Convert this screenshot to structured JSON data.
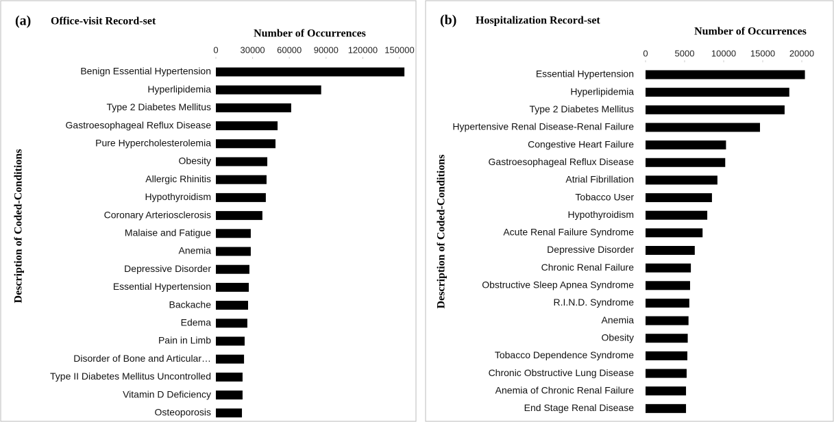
{
  "chart_data": [
    {
      "type": "bar",
      "orientation": "horizontal",
      "panel_label": "(a)",
      "title": "Office-visit Record-set",
      "x_label": "Number of Occurrences",
      "y_label": "Description of Coded-Conditions",
      "color": "#000000",
      "categories": [
        "Benign Essential Hypertension",
        "Hyperlipidemia",
        "Type 2 Diabetes Mellitus",
        "Gastroesophageal Reflux Disease",
        "Pure Hypercholesterolemia",
        "Obesity",
        "Allergic Rhinitis",
        "Hypothyroidism",
        "Coronary Arteriosclerosis",
        "Malaise and Fatigue",
        "Anemia",
        "Depressive Disorder",
        "Essential Hypertension",
        "Backache",
        "Edema",
        "Pain in Limb",
        "Disorder of Bone and Articular…",
        "Type II Diabetes Mellitus Uncontrolled",
        "Vitamin D Deficiency",
        "Osteoporosis"
      ],
      "values": [
        154000,
        86000,
        61500,
        50400,
        48700,
        42000,
        41400,
        40800,
        38000,
        28500,
        28500,
        27400,
        26900,
        26300,
        25700,
        23500,
        23000,
        21800,
        21800,
        21300
      ],
      "xlim": [
        0,
        150000
      ],
      "xticks": [
        0,
        30000,
        60000,
        90000,
        120000,
        150000
      ]
    },
    {
      "type": "bar",
      "orientation": "horizontal",
      "panel_label": "(b)",
      "title": "Hospitalization Record-set",
      "x_label": "Number of Occurrences",
      "y_label": "Description of Coded-Conditions",
      "color": "#000000",
      "categories": [
        "Essential Hypertension",
        "Hyperlipidemia",
        "Type 2 Diabetes Mellitus",
        "Hypertensive Renal Disease-Renal Failure",
        "Congestive Heart Failure",
        "Gastroesophageal Reflux Disease",
        "Atrial Fibrillation",
        "Tobacco User",
        "Hypothyroidism",
        "Acute Renal Failure Syndrome",
        "Depressive Disorder",
        "Chronic Renal Failure",
        "Obstructive Sleep Apnea Syndrome",
        "R.I.N.D. Syndrome",
        "Anemia",
        "Obesity",
        "Tobacco Dependence Syndrome",
        "Chronic Obstructive Lung Disease",
        "Anemia of Chronic Renal Failure",
        "End Stage Renal Disease"
      ],
      "values": [
        20400,
        18400,
        17800,
        14650,
        10300,
        10200,
        9200,
        8500,
        7900,
        7300,
        6300,
        5800,
        5700,
        5600,
        5500,
        5400,
        5350,
        5260,
        5180,
        5180
      ],
      "xlim": [
        0,
        20000
      ],
      "xticks": [
        0,
        5000,
        10000,
        15000,
        20000
      ]
    }
  ]
}
